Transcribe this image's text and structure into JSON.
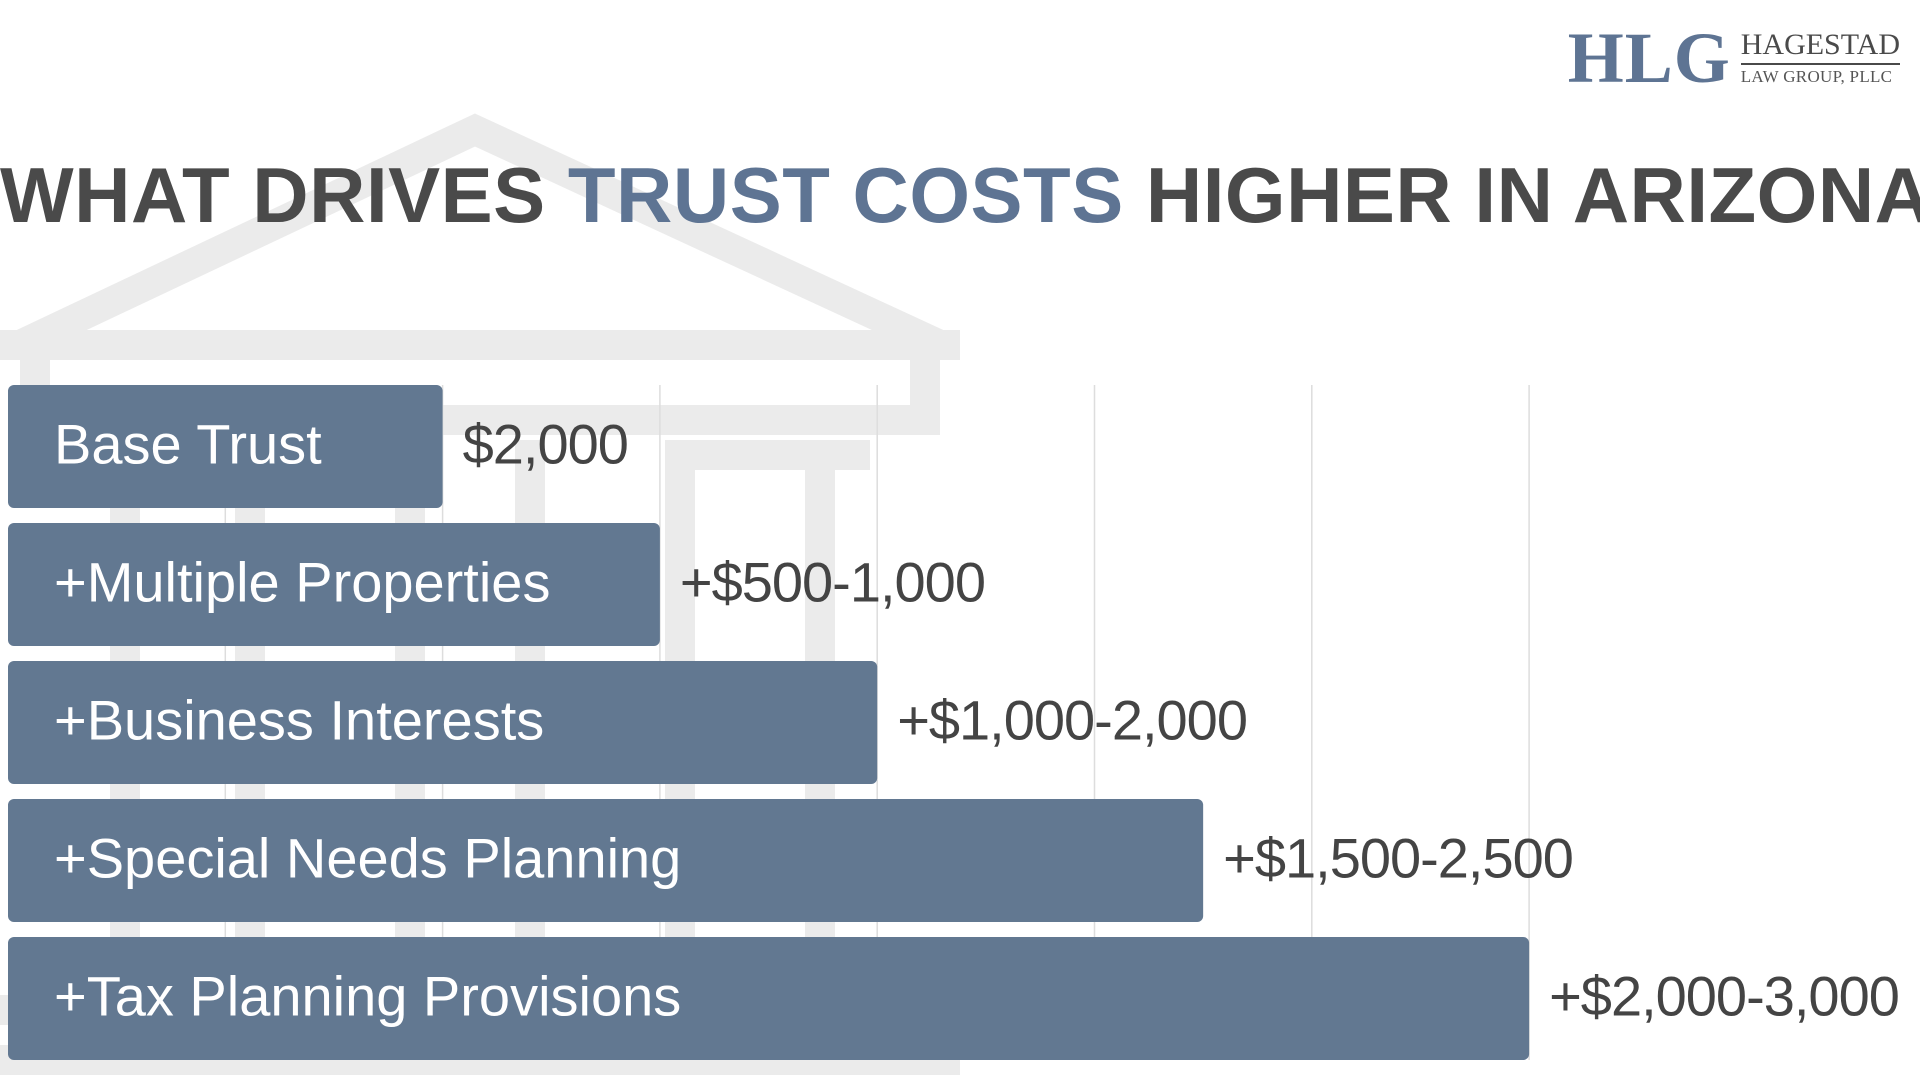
{
  "header": {
    "title_part1": "WHAT DRIVES ",
    "title_accent": "TRUST COSTS",
    "title_part2": " HIGHER IN ARIZONA"
  },
  "logo": {
    "mark": "HLG",
    "name": "HAGESTAD",
    "subtitle": "LAW GROUP, PLLC"
  },
  "colors": {
    "bar": "#627891",
    "accent": "#5e7493",
    "text": "#4a4a4a",
    "value_text": "#444444",
    "grid": "#dddddd",
    "background_building": "#ebebeb"
  },
  "chart_data": {
    "type": "bar",
    "orientation": "horizontal",
    "title": "WHAT DRIVES TRUST COSTS HIGHER IN ARIZONA",
    "categories": [
      "Base Trust",
      "+Multiple Properties",
      "+Business Interests",
      "+Special Needs Planning",
      "+Tax Planning Provisions"
    ],
    "values": [
      2000,
      3000,
      4000,
      5500,
      7000
    ],
    "value_labels": [
      "$2,000",
      "+$500-1,000",
      "+$1,000-2,000",
      "+$1,500-2,500",
      "+$2,000-3,000"
    ],
    "xlim": [
      0,
      7000
    ],
    "grid": true,
    "legend": "none"
  }
}
